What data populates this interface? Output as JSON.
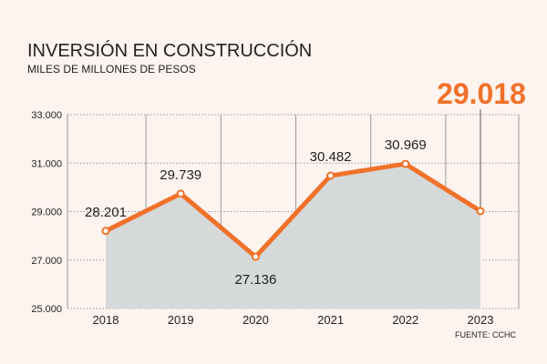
{
  "chart_data": {
    "type": "area",
    "title": "INVERSIÓN EN CONSTRUCCIÓN",
    "subtitle": "MILES DE MILLONES DE PESOS",
    "source": "FUENTE: CCHC",
    "highlight_label": "29.018",
    "categories": [
      "2018",
      "2019",
      "2020",
      "2021",
      "2022",
      "2023"
    ],
    "values": [
      28201,
      29739,
      27136,
      30482,
      30969,
      29018
    ],
    "value_labels": [
      "28.201",
      "29.739",
      "27.136",
      "30.482",
      "30.969",
      ""
    ],
    "ylim": [
      25000,
      33000
    ],
    "yticks": [
      25000,
      27000,
      29000,
      31000,
      33000
    ],
    "ytick_labels": [
      "25.000",
      "27.000",
      "29.000",
      "31.000",
      "33.000"
    ],
    "grid": true,
    "colors": {
      "line": "#f0712a",
      "area": "#d5d9d9",
      "highlight": "#f0712a",
      "text": "#222222",
      "grid": "#9a9a9a",
      "background": "#fdf3ef"
    }
  }
}
